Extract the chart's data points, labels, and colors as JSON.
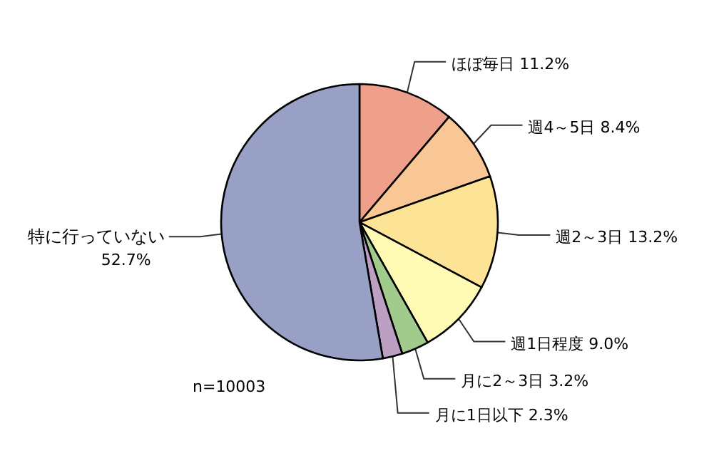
{
  "chart_data": {
    "type": "pie",
    "categories": [
      "ほぼ毎日",
      "週4～5日",
      "週2～3日",
      "週1日程度",
      "月に2～3日",
      "月に1日以下",
      "特に行っていない"
    ],
    "values": [
      11.2,
      8.4,
      13.2,
      9.0,
      3.2,
      2.3,
      52.7
    ],
    "value_labels": [
      "11.2%",
      "8.4%",
      "13.2%",
      "9.0%",
      "3.2%",
      "2.3%",
      "52.7%"
    ],
    "colors": [
      "#eea08a",
      "#f9c796",
      "#fde395",
      "#fffab4",
      "#a0cb8c",
      "#bc9fc3",
      "#98a0c5"
    ],
    "annotations": [
      "n=10003"
    ]
  }
}
